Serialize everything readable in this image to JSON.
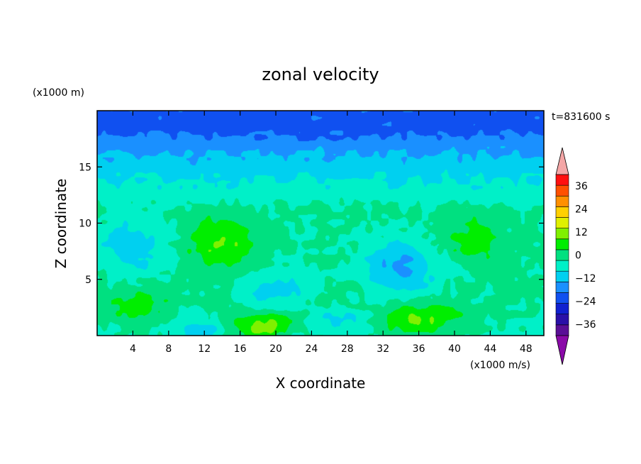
{
  "chart_data": {
    "type": "heatmap",
    "title": "zonal velocity",
    "xlabel": "X coordinate",
    "ylabel": "Z coordinate",
    "x_unit": "(x1000 m/s)",
    "y_unit": "(x1000 m)",
    "time_label": "t=831600 s",
    "xlim": [
      0,
      50
    ],
    "ylim": [
      0,
      20
    ],
    "x_ticks": [
      4,
      8,
      12,
      16,
      20,
      24,
      28,
      32,
      36,
      40,
      44,
      48
    ],
    "y_ticks": [
      5,
      10,
      15
    ],
    "colorbar": {
      "ticks": [
        36,
        24,
        12,
        0,
        -12,
        -24,
        -36
      ],
      "levels": [
        -42,
        -36,
        -30,
        -24,
        -18,
        -12,
        -6,
        0,
        6,
        12,
        18,
        24,
        30,
        36,
        42
      ],
      "colors": [
        "#5a0f96",
        "#2a10a8",
        "#1020d0",
        "#1050f0",
        "#1a90ff",
        "#00d0f0",
        "#00f0c8",
        "#00e080",
        "#00ee00",
        "#80f000",
        "#e0f000",
        "#ffd000",
        "#ff9000",
        "#ff5000",
        "#ff1010"
      ],
      "under_color": "#8a0aa8",
      "over_color": "#f4a6a6"
    },
    "field": {
      "description_grid": "values in m/s scaled units over x (0-50) and z (0-20)",
      "features": [
        {
          "x": 18,
          "z": 1,
          "value": 14,
          "sx": 4,
          "sz": 1.2
        },
        {
          "x": 36,
          "z": 1.5,
          "value": 14,
          "sx": 5,
          "sz": 1.5
        },
        {
          "x": 4.5,
          "z": 2.5,
          "value": 11,
          "sx": 3.5,
          "sz": 1.5
        },
        {
          "x": 14,
          "z": 8,
          "value": 12,
          "sx": 4,
          "sz": 2.5
        },
        {
          "x": 42,
          "z": 8.5,
          "value": 9,
          "sx": 3,
          "sz": 2
        },
        {
          "x": 4,
          "z": 8,
          "value": -10,
          "sx": 4,
          "sz": 2.5
        },
        {
          "x": 34,
          "z": 6,
          "value": -14,
          "sx": 4,
          "sz": 2.5
        },
        {
          "x": 20,
          "z": 4,
          "value": -7,
          "sx": 4,
          "sz": 2
        },
        {
          "x": 12,
          "z": 0.6,
          "value": -8,
          "sx": 3,
          "sz": 0.8
        },
        {
          "x": 27,
          "z": 1.5,
          "value": -6,
          "sx": 4,
          "sz": 1
        }
      ]
    }
  }
}
